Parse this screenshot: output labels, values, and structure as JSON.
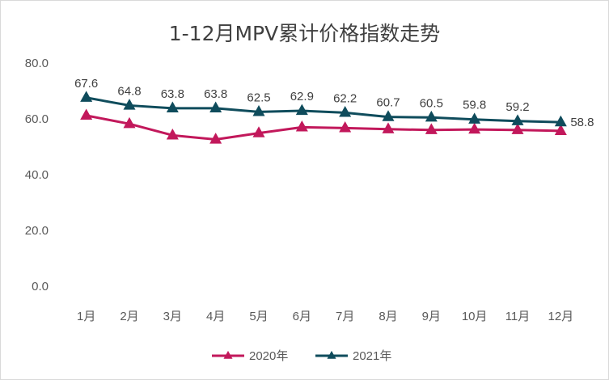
{
  "chart_data": {
    "type": "line",
    "title": "1-12月MPV累计价格指数走势",
    "categories": [
      "1月",
      "2月",
      "3月",
      "4月",
      "5月",
      "6月",
      "7月",
      "8月",
      "9月",
      "10月",
      "11月",
      "12月"
    ],
    "ylim": [
      0,
      80
    ],
    "yticks": [
      "0.0",
      "20.0",
      "40.0",
      "60.0",
      "80.0"
    ],
    "grid": false,
    "legend_position": "bottom",
    "series": [
      {
        "name": "2020年",
        "color": "#c2185b",
        "marker": "triangle",
        "values": [
          61.2,
          58.2,
          54.1,
          52.6,
          54.9,
          57.0,
          56.7,
          56.3,
          56.0,
          56.2,
          56.0,
          55.7
        ],
        "show_labels": false
      },
      {
        "name": "2021年",
        "color": "#0f4c5c",
        "marker": "triangle",
        "values": [
          67.6,
          64.8,
          63.8,
          63.8,
          62.5,
          62.9,
          62.2,
          60.7,
          60.5,
          59.8,
          59.2,
          58.8
        ],
        "labels": [
          "67.6",
          "64.8",
          "63.8",
          "63.8",
          "62.5",
          "62.9",
          "62.2",
          "60.7",
          "60.5",
          "59.8",
          "59.2",
          "58.8"
        ],
        "show_labels": true
      }
    ]
  }
}
